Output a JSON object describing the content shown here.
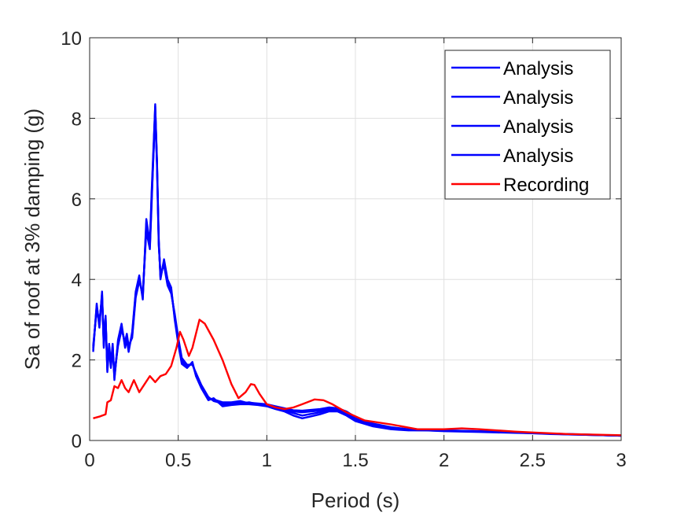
{
  "chart_data": {
    "type": "line",
    "title": "",
    "xlabel": "Period (s)",
    "ylabel": "Sa of roof at 3% damping (g)",
    "xlim": [
      0,
      3
    ],
    "ylim": [
      0,
      10
    ],
    "xticks": [
      0,
      0.5,
      1,
      1.5,
      2,
      2.5,
      3
    ],
    "xtick_labels": [
      "0",
      "0.5",
      "1",
      "1.5",
      "2",
      "2.5",
      "3"
    ],
    "yticks": [
      0,
      2,
      4,
      6,
      8,
      10
    ],
    "ytick_labels": [
      "0",
      "2",
      "4",
      "6",
      "8",
      "10"
    ],
    "grid": true,
    "legend_position": "top-right",
    "series": [
      {
        "name": "Analysis",
        "color": "#0000ff",
        "x": [
          0.02,
          0.04,
          0.055,
          0.07,
          0.08,
          0.09,
          0.1,
          0.11,
          0.12,
          0.13,
          0.14,
          0.16,
          0.18,
          0.2,
          0.21,
          0.22,
          0.24,
          0.26,
          0.28,
          0.3,
          0.32,
          0.34,
          0.35,
          0.37,
          0.38,
          0.39,
          0.4,
          0.42,
          0.44,
          0.46,
          0.48,
          0.5,
          0.52,
          0.55,
          0.58,
          0.6,
          0.63,
          0.67,
          0.7,
          0.75,
          0.8,
          0.85,
          0.9,
          0.95,
          1.0,
          1.05,
          1.1,
          1.15,
          1.2,
          1.25,
          1.3,
          1.35,
          1.4,
          1.45,
          1.5,
          1.6,
          1.7,
          1.8,
          1.9,
          2.0,
          2.1,
          2.2,
          2.3,
          2.4,
          2.5,
          2.6,
          2.7,
          2.8,
          2.9,
          3.0
        ],
        "y": [
          2.2,
          3.4,
          2.8,
          3.7,
          2.3,
          3.0,
          1.8,
          2.4,
          1.9,
          2.4,
          1.5,
          2.5,
          2.9,
          2.3,
          2.5,
          2.2,
          2.7,
          3.7,
          4.1,
          3.5,
          5.5,
          4.9,
          6.2,
          8.3,
          7.0,
          5.0,
          4.0,
          4.5,
          4.0,
          3.8,
          3.0,
          2.4,
          1.9,
          1.8,
          1.95,
          1.6,
          1.3,
          1.0,
          1.05,
          0.85,
          0.88,
          0.9,
          0.9,
          0.88,
          0.85,
          0.78,
          0.72,
          0.62,
          0.55,
          0.6,
          0.65,
          0.72,
          0.72,
          0.62,
          0.48,
          0.35,
          0.28,
          0.25,
          0.25,
          0.23,
          0.22,
          0.21,
          0.2,
          0.19,
          0.18,
          0.16,
          0.15,
          0.14,
          0.13,
          0.12
        ]
      },
      {
        "name": "Analysis",
        "color": "#0000ff",
        "x": [
          0.02,
          0.04,
          0.055,
          0.07,
          0.08,
          0.09,
          0.1,
          0.11,
          0.12,
          0.13,
          0.14,
          0.16,
          0.18,
          0.2,
          0.21,
          0.22,
          0.24,
          0.26,
          0.28,
          0.3,
          0.32,
          0.34,
          0.35,
          0.37,
          0.38,
          0.39,
          0.4,
          0.42,
          0.44,
          0.46,
          0.48,
          0.5,
          0.52,
          0.55,
          0.58,
          0.6,
          0.63,
          0.67,
          0.7,
          0.75,
          0.8,
          0.85,
          0.9,
          0.95,
          1.0,
          1.05,
          1.1,
          1.15,
          1.2,
          1.25,
          1.3,
          1.35,
          1.4,
          1.45,
          1.5,
          1.6,
          1.7,
          1.8,
          1.9,
          2.0,
          2.1,
          2.2,
          2.3,
          2.4,
          2.5,
          2.6,
          2.7,
          2.8,
          2.9,
          3.0
        ],
        "y": [
          2.3,
          3.3,
          2.9,
          3.6,
          2.4,
          3.1,
          1.7,
          2.3,
          1.8,
          2.3,
          1.6,
          2.4,
          2.8,
          2.4,
          2.6,
          2.3,
          2.6,
          3.6,
          4.0,
          3.6,
          5.3,
          4.8,
          6.0,
          8.1,
          6.9,
          4.9,
          4.1,
          4.4,
          3.9,
          3.7,
          3.1,
          2.5,
          2.0,
          1.85,
          1.9,
          1.65,
          1.35,
          1.05,
          1.0,
          0.9,
          0.9,
          0.92,
          0.95,
          0.9,
          0.86,
          0.8,
          0.75,
          0.68,
          0.62,
          0.66,
          0.7,
          0.76,
          0.76,
          0.66,
          0.52,
          0.38,
          0.3,
          0.26,
          0.25,
          0.24,
          0.23,
          0.22,
          0.21,
          0.2,
          0.18,
          0.17,
          0.15,
          0.14,
          0.13,
          0.12
        ]
      },
      {
        "name": "Analysis",
        "color": "#0000ff",
        "x": [
          0.02,
          0.04,
          0.055,
          0.07,
          0.08,
          0.09,
          0.1,
          0.11,
          0.12,
          0.13,
          0.14,
          0.16,
          0.18,
          0.2,
          0.21,
          0.22,
          0.24,
          0.26,
          0.28,
          0.3,
          0.32,
          0.34,
          0.35,
          0.37,
          0.38,
          0.39,
          0.4,
          0.42,
          0.44,
          0.46,
          0.48,
          0.5,
          0.52,
          0.55,
          0.58,
          0.6,
          0.63,
          0.67,
          0.7,
          0.75,
          0.8,
          0.85,
          0.9,
          0.95,
          1.0,
          1.05,
          1.1,
          1.15,
          1.2,
          1.25,
          1.3,
          1.35,
          1.4,
          1.45,
          1.5,
          1.6,
          1.7,
          1.8,
          1.9,
          2.0,
          2.1,
          2.2,
          2.3,
          2.4,
          2.5,
          2.6,
          2.7,
          2.8,
          2.9,
          3.0
        ],
        "y": [
          2.25,
          3.35,
          2.85,
          3.65,
          2.35,
          3.05,
          1.75,
          2.35,
          1.85,
          2.35,
          1.55,
          2.45,
          2.85,
          2.35,
          2.55,
          2.25,
          2.65,
          3.65,
          4.05,
          3.55,
          5.4,
          4.85,
          6.1,
          8.2,
          6.95,
          4.95,
          4.05,
          4.45,
          3.95,
          3.75,
          3.05,
          2.45,
          1.95,
          1.82,
          1.92,
          1.62,
          1.32,
          1.02,
          1.02,
          0.95,
          0.95,
          0.98,
          0.92,
          0.9,
          0.88,
          0.82,
          0.78,
          0.72,
          0.7,
          0.72,
          0.74,
          0.8,
          0.8,
          0.7,
          0.55,
          0.4,
          0.32,
          0.27,
          0.26,
          0.25,
          0.24,
          0.23,
          0.22,
          0.2,
          0.19,
          0.17,
          0.16,
          0.14,
          0.13,
          0.12
        ]
      },
      {
        "name": "Analysis",
        "color": "#0000ff",
        "x": [
          0.02,
          0.04,
          0.055,
          0.07,
          0.08,
          0.09,
          0.1,
          0.11,
          0.12,
          0.13,
          0.14,
          0.16,
          0.18,
          0.2,
          0.21,
          0.22,
          0.24,
          0.26,
          0.28,
          0.3,
          0.32,
          0.34,
          0.35,
          0.37,
          0.38,
          0.39,
          0.4,
          0.42,
          0.44,
          0.46,
          0.48,
          0.5,
          0.52,
          0.55,
          0.58,
          0.6,
          0.63,
          0.67,
          0.7,
          0.75,
          0.8,
          0.85,
          0.9,
          0.95,
          1.0,
          1.05,
          1.1,
          1.15,
          1.2,
          1.25,
          1.3,
          1.35,
          1.4,
          1.45,
          1.5,
          1.6,
          1.7,
          1.8,
          1.9,
          2.0,
          2.1,
          2.2,
          2.3,
          2.4,
          2.5,
          2.6,
          2.7,
          2.8,
          2.9,
          3.0
        ],
        "y": [
          2.35,
          3.25,
          2.95,
          3.55,
          2.45,
          2.95,
          1.85,
          2.25,
          1.95,
          2.25,
          1.65,
          2.35,
          2.75,
          2.45,
          2.65,
          2.35,
          2.55,
          3.55,
          3.95,
          3.65,
          5.2,
          4.75,
          5.9,
          8.35,
          6.85,
          4.85,
          4.15,
          4.35,
          3.85,
          3.65,
          3.15,
          2.55,
          2.05,
          1.88,
          1.88,
          1.68,
          1.38,
          1.08,
          0.98,
          0.92,
          0.92,
          0.94,
          0.94,
          0.92,
          0.9,
          0.85,
          0.8,
          0.75,
          0.74,
          0.76,
          0.78,
          0.82,
          0.8,
          0.72,
          0.58,
          0.42,
          0.33,
          0.28,
          0.26,
          0.25,
          0.24,
          0.23,
          0.22,
          0.21,
          0.19,
          0.17,
          0.16,
          0.15,
          0.13,
          0.12
        ]
      },
      {
        "name": "Recording",
        "color": "#ff0000",
        "x": [
          0.02,
          0.06,
          0.09,
          0.1,
          0.12,
          0.14,
          0.16,
          0.18,
          0.2,
          0.22,
          0.25,
          0.28,
          0.31,
          0.34,
          0.37,
          0.4,
          0.43,
          0.46,
          0.49,
          0.51,
          0.53,
          0.56,
          0.58,
          0.62,
          0.65,
          0.7,
          0.75,
          0.8,
          0.84,
          0.88,
          0.91,
          0.93,
          0.96,
          1.0,
          1.05,
          1.1,
          1.15,
          1.2,
          1.27,
          1.32,
          1.37,
          1.45,
          1.55,
          1.7,
          1.85,
          2.0,
          2.1,
          2.2,
          2.3,
          2.4,
          2.5,
          2.6,
          2.7,
          2.8,
          2.9,
          3.0
        ],
        "y": [
          0.55,
          0.6,
          0.65,
          0.95,
          1.0,
          1.35,
          1.3,
          1.5,
          1.3,
          1.2,
          1.5,
          1.2,
          1.4,
          1.6,
          1.45,
          1.6,
          1.65,
          1.85,
          2.3,
          2.7,
          2.5,
          2.1,
          2.3,
          3.0,
          2.9,
          2.5,
          2.0,
          1.4,
          1.05,
          1.2,
          1.4,
          1.38,
          1.15,
          0.9,
          0.82,
          0.78,
          0.82,
          0.9,
          1.02,
          1.0,
          0.9,
          0.7,
          0.5,
          0.4,
          0.28,
          0.28,
          0.3,
          0.28,
          0.25,
          0.22,
          0.2,
          0.18,
          0.16,
          0.15,
          0.14,
          0.13
        ]
      }
    ]
  }
}
